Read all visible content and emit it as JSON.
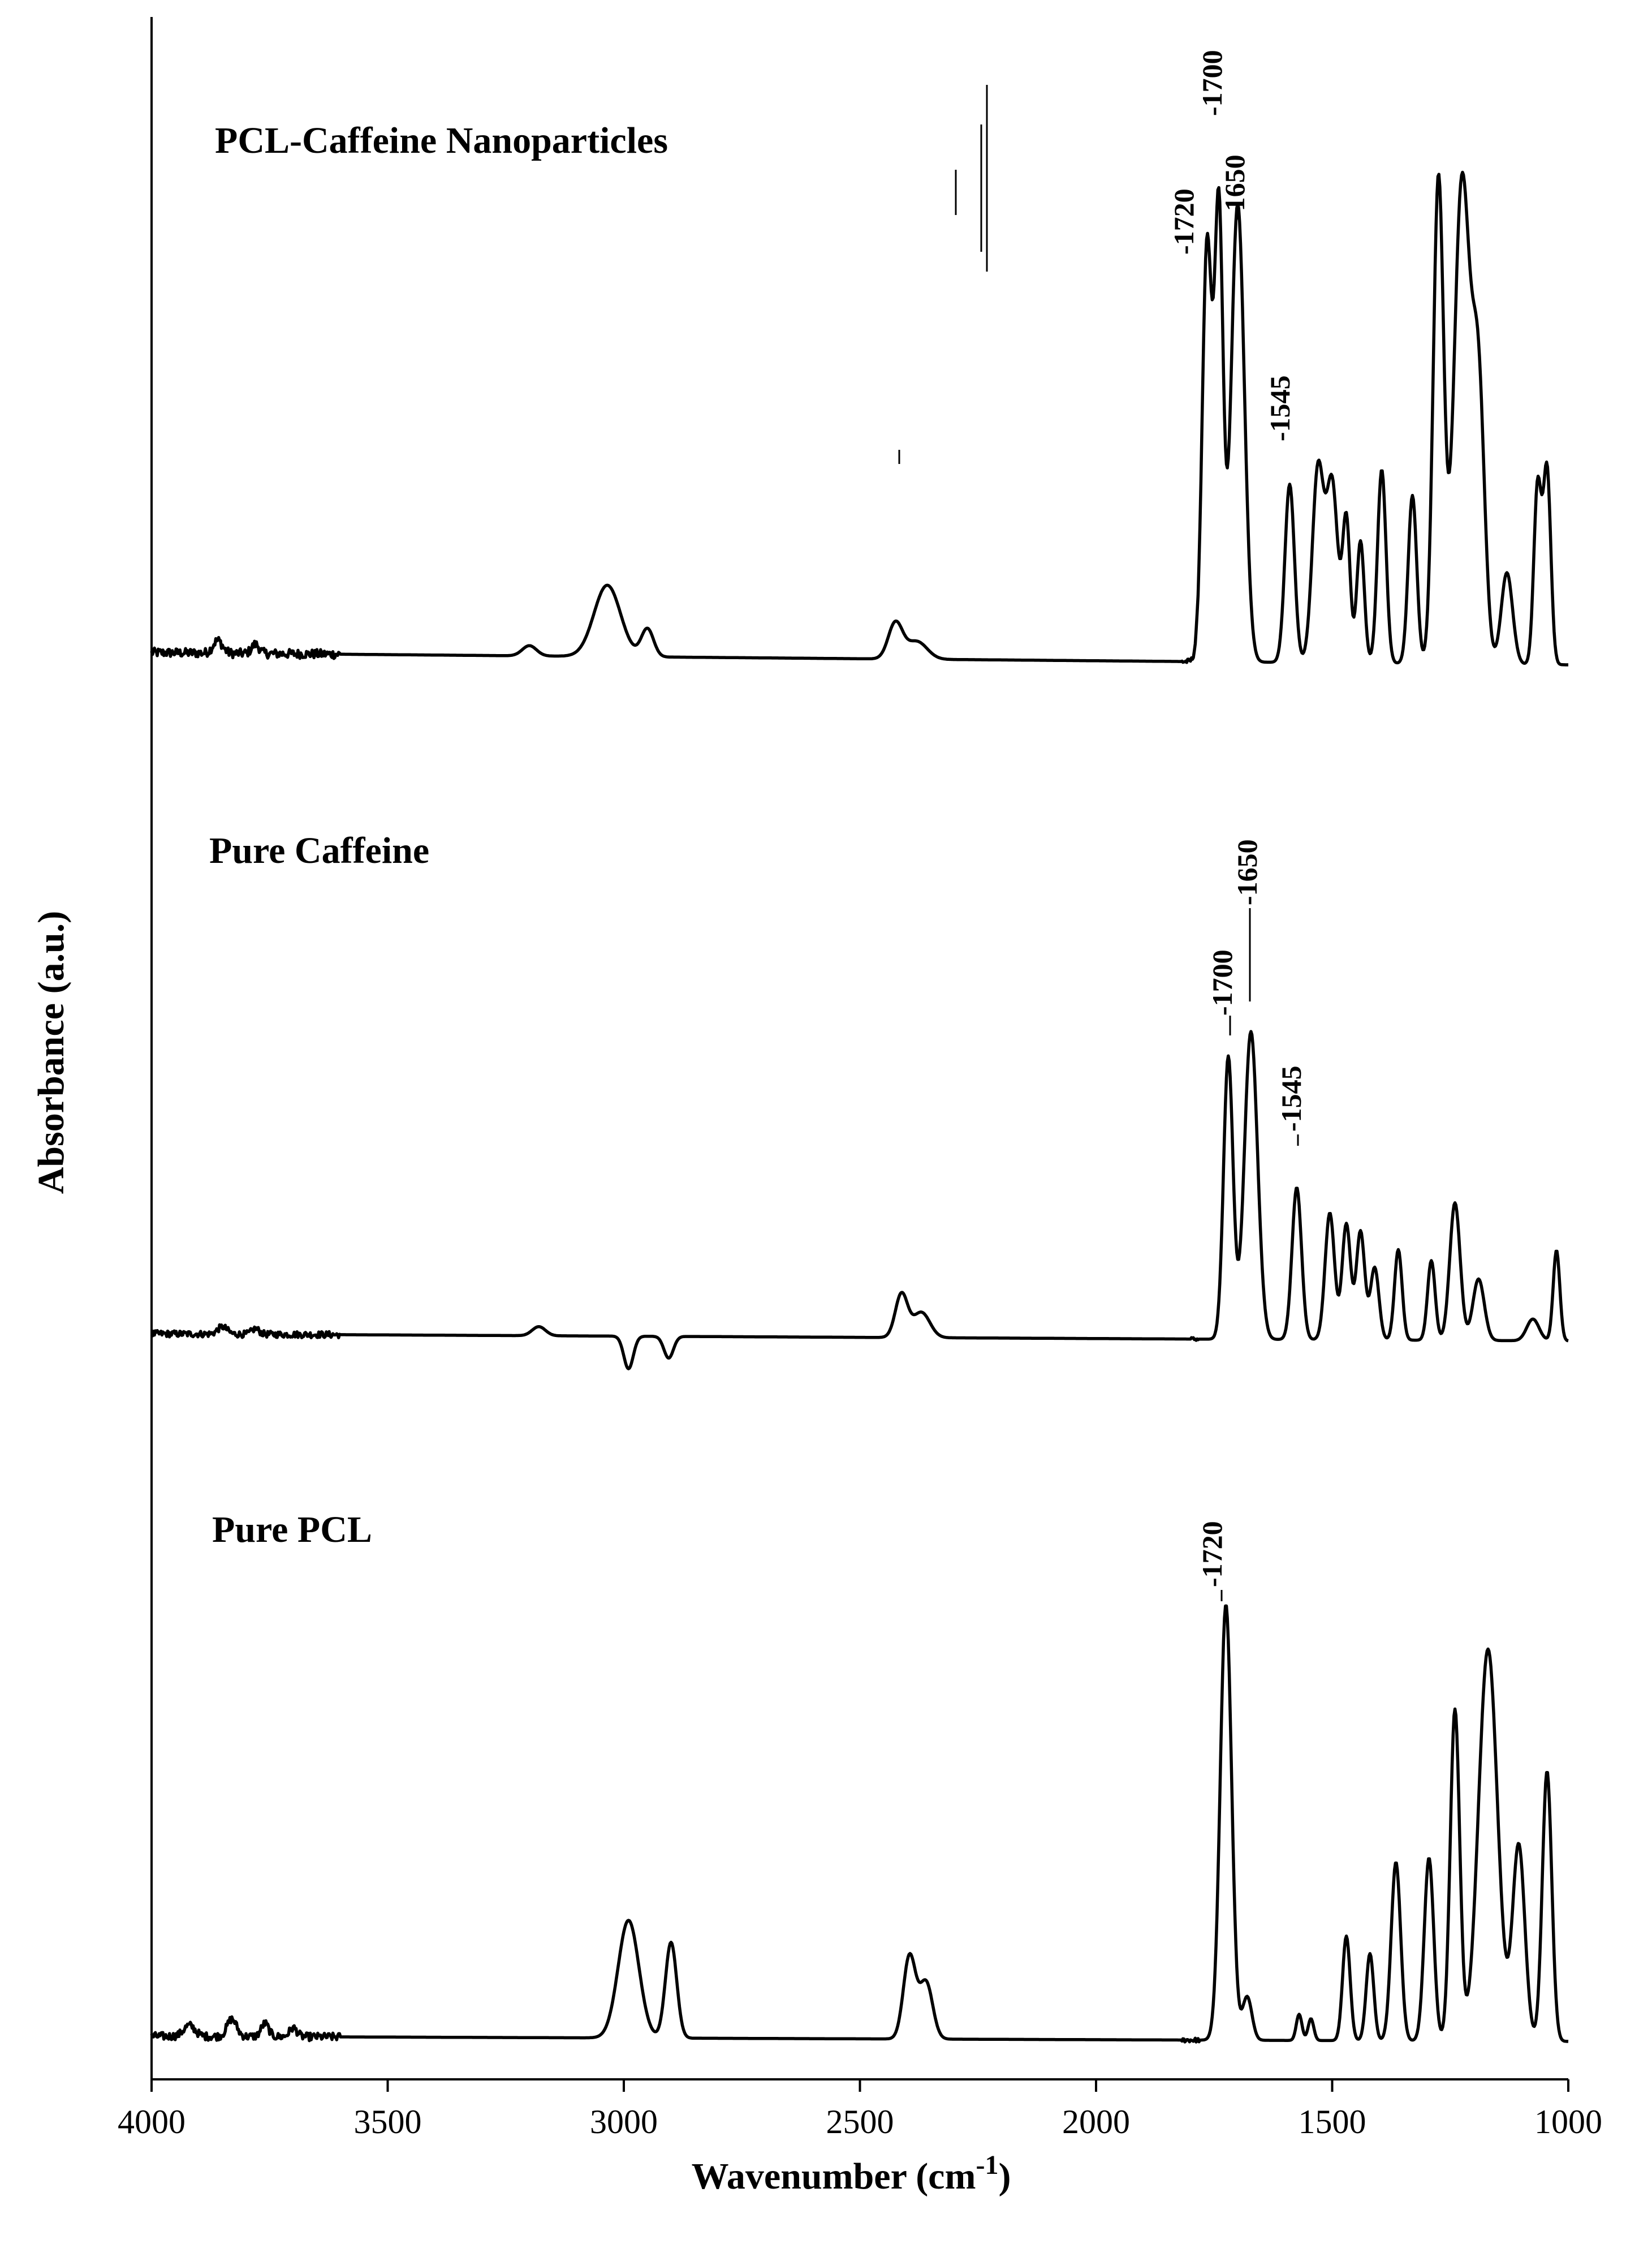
{
  "chart_data": {
    "type": "line",
    "title": "",
    "xlabel": "Wavenumber (cm",
    "xlabel_sup": "-1",
    "xlabel_tail": ")",
    "ylabel": "Absorbance (a.u.)",
    "xlim": [
      4000,
      1000
    ],
    "x_reversed": true,
    "xticks": [
      4000,
      3500,
      3000,
      2500,
      2000,
      1500,
      1000
    ],
    "xtick_labels": [
      "4000",
      "3500",
      "3000",
      "2500",
      "2000",
      "1500",
      "1000"
    ],
    "y_ticks_shown": false,
    "stacked_offset": true,
    "series": [
      {
        "name": "PCL-Caffeine Nanoparticles",
        "baseline": 0.06,
        "noise_below": 1820,
        "peaks": [
          {
            "x": 3860,
            "h": 0.025,
            "w": 10
          },
          {
            "x": 3780,
            "h": 0.018,
            "w": 8
          },
          {
            "x": 3200,
            "h": 0.02,
            "w": 15
          },
          {
            "x": 3035,
            "h": 0.14,
            "w": 28
          },
          {
            "x": 2950,
            "h": 0.055,
            "w": 13
          },
          {
            "x": 2425,
            "h": 0.07,
            "w": 15
          },
          {
            "x": 2380,
            "h": 0.035,
            "w": 22
          },
          {
            "x": 1765,
            "h": 0.82,
            "w": 10
          },
          {
            "x": 1740,
            "h": 0.88,
            "w": 9
          },
          {
            "x": 1700,
            "h": 0.9,
            "w": 14
          },
          {
            "x": 1590,
            "h": 0.35,
            "w": 10
          },
          {
            "x": 1530,
            "h": 0.38,
            "w": 12
          },
          {
            "x": 1500,
            "h": 0.35,
            "w": 12
          },
          {
            "x": 1470,
            "h": 0.28,
            "w": 8
          },
          {
            "x": 1440,
            "h": 0.24,
            "w": 8
          },
          {
            "x": 1395,
            "h": 0.38,
            "w": 9
          },
          {
            "x": 1330,
            "h": 0.33,
            "w": 9
          },
          {
            "x": 1275,
            "h": 0.95,
            "w": 11
          },
          {
            "x": 1225,
            "h": 0.95,
            "w": 17
          },
          {
            "x": 1190,
            "h": 0.52,
            "w": 13
          },
          {
            "x": 1130,
            "h": 0.18,
            "w": 12
          },
          {
            "x": 1065,
            "h": 0.35,
            "w": 8
          },
          {
            "x": 1045,
            "h": 0.38,
            "w": 8
          }
        ],
        "peak_labels": [
          "1720",
          "1700",
          "1650",
          "1545"
        ]
      },
      {
        "name": "Pure Caffeine",
        "baseline": 0.05,
        "noise_below": 1800,
        "peaks": [
          {
            "x": 3850,
            "h": 0.02,
            "w": 10
          },
          {
            "x": 3780,
            "h": 0.015,
            "w": 8
          },
          {
            "x": 3180,
            "h": 0.025,
            "w": 14
          },
          {
            "x": 2990,
            "h": -0.09,
            "w": 10
          },
          {
            "x": 2905,
            "h": -0.06,
            "w": 10
          },
          {
            "x": 2412,
            "h": 0.12,
            "w": 13
          },
          {
            "x": 2370,
            "h": 0.07,
            "w": 18
          },
          {
            "x": 1720,
            "h": 0.78,
            "w": 10
          },
          {
            "x": 1672,
            "h": 0.85,
            "w": 14
          },
          {
            "x": 1575,
            "h": 0.42,
            "w": 10
          },
          {
            "x": 1505,
            "h": 0.35,
            "w": 10
          },
          {
            "x": 1470,
            "h": 0.32,
            "w": 9
          },
          {
            "x": 1440,
            "h": 0.3,
            "w": 9
          },
          {
            "x": 1410,
            "h": 0.2,
            "w": 9
          },
          {
            "x": 1360,
            "h": 0.25,
            "w": 8
          },
          {
            "x": 1290,
            "h": 0.22,
            "w": 8
          },
          {
            "x": 1240,
            "h": 0.38,
            "w": 11
          },
          {
            "x": 1190,
            "h": 0.17,
            "w": 12
          },
          {
            "x": 1075,
            "h": 0.06,
            "w": 13
          },
          {
            "x": 1025,
            "h": 0.25,
            "w": 7
          }
        ],
        "peak_labels": [
          "1700",
          "1650",
          "1545"
        ]
      },
      {
        "name": "Pure PCL",
        "baseline": 0.03,
        "noise_below": 1820,
        "peaks": [
          {
            "x": 3920,
            "h": 0.025,
            "w": 12
          },
          {
            "x": 3830,
            "h": 0.04,
            "w": 10
          },
          {
            "x": 3760,
            "h": 0.03,
            "w": 8
          },
          {
            "x": 3700,
            "h": 0.02,
            "w": 8
          },
          {
            "x": 2990,
            "h": 0.27,
            "w": 22
          },
          {
            "x": 2900,
            "h": 0.22,
            "w": 12
          },
          {
            "x": 2395,
            "h": 0.19,
            "w": 13
          },
          {
            "x": 2360,
            "h": 0.13,
            "w": 14
          },
          {
            "x": 1725,
            "h": 1.0,
            "w": 12
          },
          {
            "x": 1680,
            "h": 0.1,
            "w": 10
          },
          {
            "x": 1570,
            "h": 0.06,
            "w": 6
          },
          {
            "x": 1545,
            "h": 0.05,
            "w": 6
          },
          {
            "x": 1470,
            "h": 0.24,
            "w": 8
          },
          {
            "x": 1420,
            "h": 0.2,
            "w": 8
          },
          {
            "x": 1365,
            "h": 0.41,
            "w": 10
          },
          {
            "x": 1295,
            "h": 0.42,
            "w": 10
          },
          {
            "x": 1240,
            "h": 0.76,
            "w": 10
          },
          {
            "x": 1170,
            "h": 0.9,
            "w": 20
          },
          {
            "x": 1105,
            "h": 0.45,
            "w": 13
          },
          {
            "x": 1045,
            "h": 0.62,
            "w": 10
          }
        ],
        "peak_labels": [
          "1720"
        ]
      }
    ]
  }
}
